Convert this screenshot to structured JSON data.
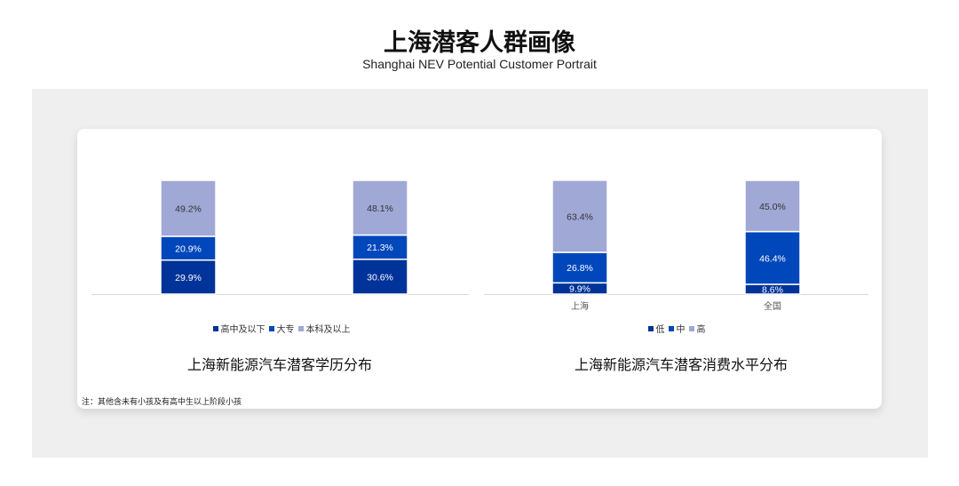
{
  "header": {
    "title": "上海潜客人群画像",
    "subtitle": "Shanghai NEV Potential Customer Portrait"
  },
  "note": "注：其他含未有小孩及有高中生以上阶段小孩",
  "chart_data": [
    {
      "type": "bar",
      "stacked": true,
      "title": "上海新能源汽车潜客学历分布",
      "categories": [
        "",
        ""
      ],
      "series": [
        {
          "name": "高中及以下",
          "values": [
            29.9,
            30.6
          ],
          "color": "#003399"
        },
        {
          "name": "大专",
          "values": [
            20.9,
            21.3
          ],
          "color": "#0047bb"
        },
        {
          "name": "本科及以上",
          "values": [
            49.2,
            48.1
          ],
          "color": "#a0a8d6"
        }
      ],
      "ylim": [
        0,
        100
      ],
      "unit": "%",
      "legend": "bottom",
      "grid": false
    },
    {
      "type": "bar",
      "stacked": true,
      "title": "上海新能源汽车潜客消费水平分布",
      "categories": [
        "上海",
        "全国"
      ],
      "series": [
        {
          "name": "低",
          "values": [
            9.9,
            8.6
          ],
          "color": "#003399"
        },
        {
          "name": "中",
          "values": [
            26.8,
            46.4
          ],
          "color": "#0047bb"
        },
        {
          "name": "高",
          "values": [
            63.4,
            45.0
          ],
          "color": "#a0a8d6"
        }
      ],
      "ylim": [
        0,
        100
      ],
      "unit": "%",
      "legend": "bottom",
      "grid": false
    }
  ]
}
